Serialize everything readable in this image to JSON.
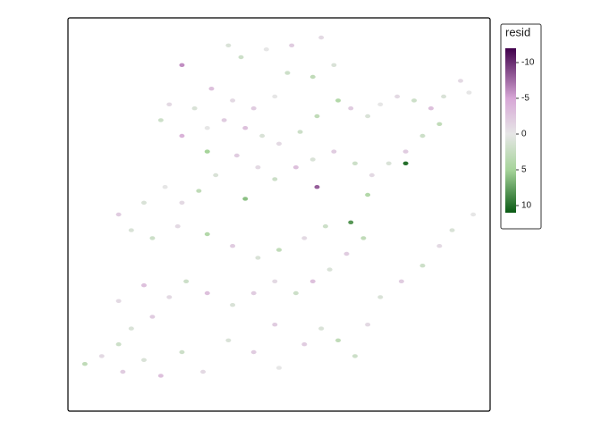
{
  "map_data": {
    "xlim": [
      0,
      100
    ],
    "ylim": [
      0,
      100
    ],
    "points": [
      [
        38,
        93,
        1
      ],
      [
        41,
        90,
        2
      ],
      [
        47,
        92,
        0
      ],
      [
        53,
        93,
        -2
      ],
      [
        60,
        95,
        -1
      ],
      [
        63,
        88,
        1
      ],
      [
        58,
        85,
        3
      ],
      [
        52,
        86,
        2
      ],
      [
        49,
        80,
        0
      ],
      [
        44,
        77,
        -2
      ],
      [
        39,
        79,
        -1
      ],
      [
        34,
        82,
        -3
      ],
      [
        30,
        77,
        1
      ],
      [
        24,
        78,
        -1
      ],
      [
        22,
        74,
        2
      ],
      [
        27,
        70,
        -4
      ],
      [
        33,
        72,
        0
      ],
      [
        37,
        74,
        -2
      ],
      [
        42,
        72,
        -3
      ],
      [
        46,
        70,
        1
      ],
      [
        50,
        68,
        -1
      ],
      [
        55,
        71,
        2
      ],
      [
        59,
        75,
        3
      ],
      [
        64,
        79,
        4
      ],
      [
        67,
        77,
        -2
      ],
      [
        71,
        75,
        1
      ],
      [
        74,
        78,
        0
      ],
      [
        78,
        80,
        -1
      ],
      [
        82,
        79,
        2
      ],
      [
        86,
        77,
        -3
      ],
      [
        89,
        80,
        1
      ],
      [
        93,
        84,
        -1
      ],
      [
        95,
        81,
        0
      ],
      [
        88,
        73,
        3
      ],
      [
        84,
        70,
        2
      ],
      [
        80,
        66,
        -2
      ],
      [
        76,
        63,
        1
      ],
      [
        72,
        60,
        -1
      ],
      [
        68,
        63,
        2
      ],
      [
        63,
        66,
        -2
      ],
      [
        58,
        64,
        1
      ],
      [
        54,
        62,
        -3
      ],
      [
        49,
        59,
        2
      ],
      [
        45,
        62,
        -1
      ],
      [
        40,
        65,
        -2
      ],
      [
        35,
        60,
        1
      ],
      [
        31,
        56,
        3
      ],
      [
        27,
        53,
        -1
      ],
      [
        23,
        57,
        0
      ],
      [
        18,
        53,
        1
      ],
      [
        12,
        50,
        -2
      ],
      [
        15,
        46,
        1
      ],
      [
        20,
        44,
        2
      ],
      [
        26,
        47,
        -1
      ],
      [
        33,
        45,
        4
      ],
      [
        39,
        42,
        -2
      ],
      [
        45,
        39,
        1
      ],
      [
        50,
        41,
        3
      ],
      [
        56,
        44,
        -1
      ],
      [
        61,
        47,
        2
      ],
      [
        67,
        48,
        8
      ],
      [
        70,
        44,
        3
      ],
      [
        66,
        40,
        -2
      ],
      [
        62,
        36,
        1
      ],
      [
        58,
        33,
        -3
      ],
      [
        54,
        30,
        2
      ],
      [
        49,
        33,
        -1
      ],
      [
        44,
        30,
        -2
      ],
      [
        39,
        27,
        1
      ],
      [
        33,
        30,
        -3
      ],
      [
        28,
        33,
        2
      ],
      [
        24,
        29,
        -1
      ],
      [
        20,
        24,
        -2
      ],
      [
        15,
        21,
        1
      ],
      [
        12,
        17,
        2
      ],
      [
        8,
        14,
        -1
      ],
      [
        4,
        12,
        3
      ],
      [
        13,
        10,
        -2
      ],
      [
        18,
        13,
        1
      ],
      [
        22,
        9,
        -3
      ],
      [
        27,
        15,
        2
      ],
      [
        32,
        10,
        -1
      ],
      [
        38,
        18,
        1
      ],
      [
        44,
        15,
        -2
      ],
      [
        50,
        11,
        0
      ],
      [
        56,
        17,
        -2
      ],
      [
        60,
        21,
        1
      ],
      [
        64,
        18,
        3
      ],
      [
        68,
        14,
        2
      ],
      [
        71,
        22,
        -1
      ],
      [
        74,
        29,
        1
      ],
      [
        79,
        33,
        -2
      ],
      [
        84,
        37,
        2
      ],
      [
        88,
        42,
        -1
      ],
      [
        91,
        46,
        1
      ],
      [
        96,
        50,
        0
      ],
      [
        49,
        22,
        -2
      ],
      [
        27,
        88,
        -6
      ],
      [
        80,
        63,
        10
      ],
      [
        42,
        54,
        6
      ],
      [
        59,
        57,
        -8
      ],
      [
        71,
        55,
        4
      ],
      [
        33,
        66,
        5
      ],
      [
        12,
        28,
        -1
      ],
      [
        18,
        32,
        -3
      ]
    ],
    "legend": {
      "title": "resid",
      "lim": [
        -12,
        11
      ],
      "ticks": [
        -10,
        -5,
        0,
        5,
        10
      ],
      "palette": [
        [
          -12,
          "#40004b"
        ],
        [
          -5,
          "#d7a6d6"
        ],
        [
          0,
          "#e6e6e6"
        ],
        [
          5,
          "#a6d49a"
        ],
        [
          11,
          "#0a5a14"
        ]
      ]
    }
  }
}
